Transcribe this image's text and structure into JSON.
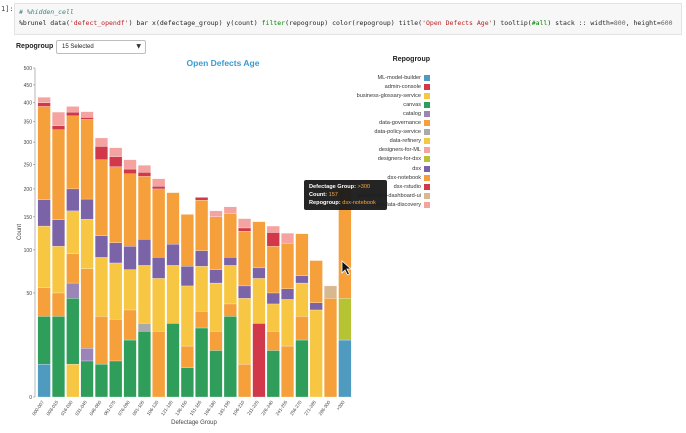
{
  "cell": {
    "prompt": "1]:",
    "code_comment": "# %hidden_cell",
    "code_parts": [
      {
        "t": "%brunel data(",
        "c": "plain"
      },
      {
        "t": "'defect_opendf'",
        "c": "str"
      },
      {
        "t": ") bar x(defectage_group) y(count) ",
        "c": "plain"
      },
      {
        "t": "filter",
        "c": "kw"
      },
      {
        "t": "(repogroup) color(repogroup) title(",
        "c": "plain"
      },
      {
        "t": "'Open Defects Age'",
        "c": "str"
      },
      {
        "t": ") tooltip(",
        "c": "plain"
      },
      {
        "t": "#all",
        "c": "kw"
      },
      {
        "t": ") stack :: width=",
        "c": "plain"
      },
      {
        "t": "800",
        "c": "num"
      },
      {
        "t": ", height=",
        "c": "plain"
      },
      {
        "t": "600",
        "c": "num"
      }
    ]
  },
  "filter": {
    "label": "Repogroup",
    "selected": "15 Selected"
  },
  "chart_data": {
    "type": "bar",
    "stacked": true,
    "title": "Open Defects Age",
    "xlabel": "Defectage Group",
    "ylabel": "Count",
    "y_scale": "sqrt",
    "y_ticks": [
      0,
      50,
      100,
      150,
      200,
      250,
      300,
      350,
      400,
      450,
      500
    ],
    "ylim": [
      0,
      500
    ],
    "categories": [
      "000-007",
      "008-015",
      "016-030",
      "031-045",
      "046-060",
      "061-075",
      "076-090",
      "091-105",
      "106-120",
      "121-135",
      "136-150",
      "151-165",
      "166-180",
      "181-195",
      "196-210",
      "211-225",
      "226-240",
      "241-255",
      "256-270",
      "271-285",
      "286-300",
      ">300"
    ],
    "legend_title": "Repogroup",
    "legend_position": "top-right",
    "series": [
      {
        "name": "ML-model-builder",
        "color": "#4e9bbf",
        "values": [
          5,
          0,
          0,
          0,
          0,
          0,
          0,
          0,
          0,
          0,
          0,
          0,
          0,
          0,
          0,
          0,
          0,
          0,
          0,
          0,
          0,
          15
        ]
      },
      {
        "name": "admin-console",
        "color": "#d1394a",
        "values": [
          0,
          0,
          0,
          0,
          0,
          0,
          0,
          0,
          0,
          0,
          0,
          0,
          0,
          0,
          0,
          25,
          0,
          0,
          0,
          0,
          0,
          0
        ]
      },
      {
        "name": "business-glossary-service",
        "color": "#f7c744",
        "values": [
          0,
          0,
          5,
          0,
          0,
          0,
          0,
          0,
          0,
          0,
          0,
          0,
          0,
          0,
          0,
          0,
          0,
          0,
          0,
          0,
          0,
          0
        ]
      },
      {
        "name": "canvas",
        "color": "#2e9e5a",
        "values": [
          25,
          30,
          40,
          6,
          5,
          6,
          15,
          20,
          0,
          25,
          4,
          22,
          10,
          30,
          0,
          0,
          10,
          0,
          15,
          0,
          0,
          0
        ]
      },
      {
        "name": "catalog",
        "color": "#9b85b8",
        "values": [
          0,
          0,
          15,
          5,
          0,
          0,
          0,
          0,
          0,
          0,
          0,
          0,
          0,
          0,
          0,
          0,
          0,
          0,
          0,
          0,
          0,
          0
        ]
      },
      {
        "name": "data-governance",
        "color": "#f5a03a",
        "values": [
          25,
          20,
          35,
          65,
          25,
          22,
          20,
          0,
          20,
          0,
          8,
          12,
          10,
          10,
          5,
          0,
          10,
          12,
          15,
          0,
          0,
          0
        ]
      },
      {
        "name": "data-policy-service",
        "color": "#a9a9a9",
        "values": [
          0,
          0,
          0,
          0,
          0,
          0,
          0,
          5,
          0,
          0,
          0,
          0,
          0,
          0,
          0,
          0,
          0,
          0,
          0,
          0,
          0,
          0
        ]
      },
      {
        "name": "data-refinery",
        "color": "#f7c744",
        "values": [
          80,
          55,
          65,
          70,
          60,
          55,
          40,
          55,
          45,
          55,
          45,
          45,
          40,
          40,
          40,
          40,
          20,
          32,
          30,
          35,
          0,
          0
        ]
      },
      {
        "name": "designers-for-ML",
        "color": "#f4a3a0",
        "values": [
          0,
          0,
          0,
          0,
          0,
          0,
          0,
          0,
          0,
          0,
          0,
          0,
          0,
          0,
          0,
          0,
          0,
          0,
          0,
          0,
          0,
          0
        ]
      },
      {
        "name": "designers-for-dsx",
        "color": "#b5c334",
        "values": [
          0,
          0,
          0,
          0,
          0,
          0,
          0,
          0,
          0,
          0,
          0,
          0,
          0,
          0,
          0,
          0,
          0,
          0,
          0,
          0,
          0,
          30
        ]
      },
      {
        "name": "dsx",
        "color": "#7b63a8",
        "values": [
          45,
          40,
          40,
          35,
          30,
          27,
          30,
          35,
          25,
          28,
          22,
          20,
          15,
          10,
          12,
          12,
          10,
          10,
          8,
          6,
          0,
          0
        ]
      },
      {
        "name": "dsx-notebook",
        "color": "#f5a03a",
        "values": [
          210,
          185,
          165,
          175,
          140,
          135,
          125,
          110,
          110,
          85,
          75,
          80,
          75,
          65,
          70,
          65,
          55,
          55,
          55,
          45,
          45,
          157
        ]
      },
      {
        "name": "dsx-rstudio",
        "color": "#d1394a",
        "values": [
          10,
          10,
          10,
          5,
          30,
          22,
          10,
          8,
          5,
          0,
          0,
          5,
          0,
          0,
          5,
          0,
          20,
          0,
          0,
          0,
          0,
          0
        ]
      },
      {
        "name": "governance-dashboard-ui",
        "color": "#d8b890",
        "values": [
          0,
          0,
          0,
          0,
          0,
          0,
          0,
          0,
          0,
          0,
          0,
          0,
          0,
          0,
          0,
          0,
          0,
          0,
          0,
          0,
          12,
          0
        ]
      },
      {
        "name": "metadata-discovery",
        "color": "#f4a3a0",
        "values": [
          15,
          35,
          15,
          15,
          20,
          20,
          20,
          15,
          15,
          0,
          0,
          0,
          10,
          12,
          15,
          0,
          10,
          15,
          0,
          0,
          0,
          0
        ]
      }
    ]
  },
  "tooltip": {
    "rows": [
      {
        "key": "Defectage Group:",
        "value": ">300"
      },
      {
        "key": "Count:",
        "value": "157"
      },
      {
        "key": "Repogroup:",
        "value": "dsx-notebook"
      }
    ]
  }
}
